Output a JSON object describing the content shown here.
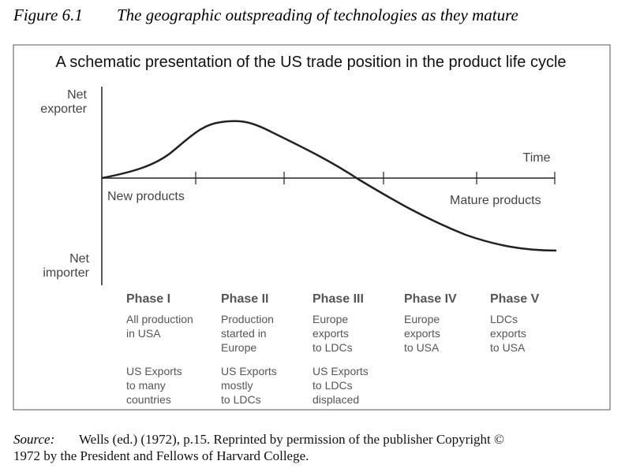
{
  "figure": {
    "label": "Figure 6.1",
    "title": "The geographic outspreading of technologies as they mature"
  },
  "diagram": {
    "title": "A schematic presentation of the US trade position in the product life cycle",
    "y_top_label": [
      "Net",
      "exporter"
    ],
    "y_bottom_label": [
      "Net",
      "importer"
    ],
    "x_label": "Time",
    "start_label": "New products",
    "end_label": "Mature products",
    "phases": [
      {
        "name": "Phase I",
        "activity": [
          "All production",
          "in USA"
        ],
        "exports": [
          "US Exports",
          "to many",
          "countries"
        ]
      },
      {
        "name": "Phase II",
        "activity": [
          "Production",
          "started in",
          "Europe"
        ],
        "exports": [
          "US Exports",
          "mostly",
          "to LDCs"
        ]
      },
      {
        "name": "Phase III",
        "activity": [
          "Europe",
          "exports",
          "to LDCs"
        ],
        "exports": [
          "US Exports",
          "to LDCs",
          "displaced"
        ]
      },
      {
        "name": "Phase IV",
        "activity": [
          "Europe",
          "exports",
          "to USA"
        ],
        "exports": []
      },
      {
        "name": "Phase V",
        "activity": [
          "LDCs",
          "exports",
          "to USA"
        ],
        "exports": []
      }
    ]
  },
  "source": {
    "label": "Source:",
    "lines": [
      "Wells (ed.) (1972), p.15. Reprinted by permission of the publisher Copyright ©",
      "1972 by the President and Fellows of Harvard College."
    ]
  }
}
